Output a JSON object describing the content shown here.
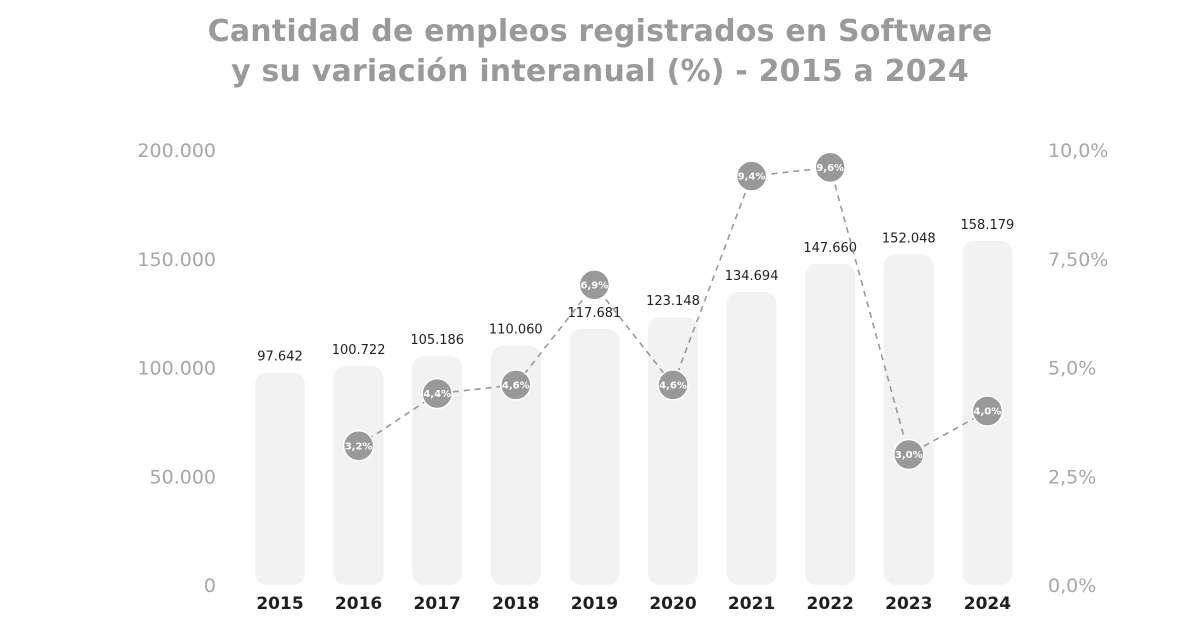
{
  "chart_data": {
    "type": "bar",
    "title_line1": "Cantidad de empleos registrados en Software",
    "title_line2": "y su variación interanual (%) - 2015 a 2024",
    "categories": [
      "2015",
      "2016",
      "2017",
      "2018",
      "2019",
      "2020",
      "2021",
      "2022",
      "2023",
      "2024"
    ],
    "bars": {
      "values": [
        97642,
        100722,
        105186,
        110060,
        117681,
        123148,
        134694,
        147660,
        152048,
        158179
      ],
      "labels": [
        "97.642",
        "100.722",
        "105.186",
        "110.060",
        "117.681",
        "123.148",
        "134.694",
        "147.660",
        "152.048",
        "158.179"
      ],
      "color": "#f2f2f2"
    },
    "line": {
      "style": "dashed",
      "values": [
        null,
        3.2,
        4.4,
        4.6,
        6.9,
        4.6,
        9.4,
        9.6,
        3.0,
        4.0
      ],
      "labels": [
        null,
        "3,2%",
        "4,4%",
        "4,6%",
        "6,9%",
        "4,6%",
        "9,4%",
        "9,6%",
        "3,0%",
        "4,0%"
      ],
      "color": "#999999"
    },
    "y_left": {
      "ylim": [
        0,
        200000
      ],
      "ticks": [
        0,
        50000,
        100000,
        150000,
        200000
      ],
      "tick_labels": [
        "0",
        "50.000",
        "100.000",
        "150.000",
        "200.000"
      ]
    },
    "y_right": {
      "ylim": [
        0,
        10
      ],
      "ticks": [
        0,
        2.5,
        5,
        7.5,
        10
      ],
      "tick_labels": [
        "0,0%",
        "2,5%",
        "5,0%",
        "7,50%",
        "10,0%"
      ]
    },
    "grid": false,
    "legend": "none"
  }
}
